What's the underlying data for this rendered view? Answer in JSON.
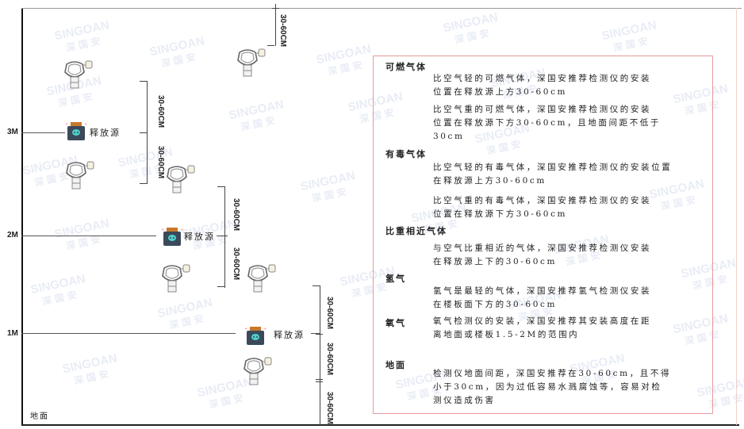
{
  "axis": {
    "levels": [
      "3M",
      "2M",
      "1M"
    ],
    "ground": "地面"
  },
  "release_source_label": "释放源",
  "dimension_label": "30-60CM",
  "watermark": {
    "brand": "SINGOAN",
    "cn": "深国安"
  },
  "colors": {
    "box_border": "#e89a9a",
    "source_body": "#3a4a5a",
    "source_cap": "#c8782a",
    "source_face": "#4fd0c8"
  },
  "panel": {
    "sections": [
      {
        "title": "可燃气体",
        "paragraphs": [
          [
            "比空气轻的可燃气体，深国安推荐检测仪的安装",
            "位置在释放源上方30-60cm"
          ],
          [
            "比空气重的可燃气体，深国安推荐检测仪的安装",
            "位置在释放源下方30-60cm，且地面间距不低于",
            "30cm"
          ]
        ]
      },
      {
        "title": "有毒气体",
        "paragraphs": [
          [
            "比空气轻的有毒气体，深国安推荐检测仪的安装位置",
            "在释放源上方30-60cm"
          ],
          [
            "比空气重的有毒气体，深国安推荐检测仪的安装",
            "位置在释放源下方30-60cm"
          ]
        ]
      },
      {
        "title": "比重相近气体",
        "paragraphs": [
          [
            "与空气比重相近的气体，深国安推荐检测仪安装",
            "在释放源上下的30-60cm"
          ]
        ]
      },
      {
        "title": "氢气",
        "paragraphs": [
          [
            "氢气是最轻的气体，深国安推荐氢气检测仪安装",
            "在楼板面下方的30-60cm"
          ]
        ]
      },
      {
        "title": "氧气",
        "paragraphs": [
          [
            "氧气检测仪的安装，深国安推荐其安装高度在距",
            "离地面或楼板1.5-2M的范围内"
          ]
        ]
      },
      {
        "title": "地面",
        "paragraphs": [
          [
            "检测仪地面间距，深国安推荐在30-60cm，且不得",
            "小于30cm，因为过低容易水溅腐蚀等，容易对检",
            "测仪造成伤害"
          ]
        ]
      }
    ]
  }
}
